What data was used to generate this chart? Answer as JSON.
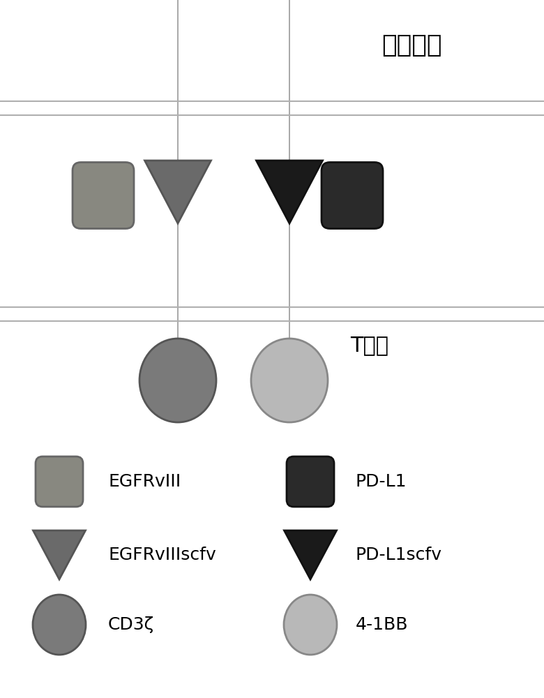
{
  "title_tumor": "肿瘤细胞",
  "title_tcell": "T细胞",
  "bg_color": "#ffffff",
  "membrane_color": "#b0b0b0",
  "line_color": "#999999",
  "egfrviii_rect_color": "#888880",
  "pdl1_rect_color": "#2a2a2a",
  "egfrviii_scfv_color": "#6a6a6a",
  "pdl1_scfv_color": "#1a1a1a",
  "cd3z_color": "#7a7a7a",
  "bb41_color": "#b8b8b8",
  "legend_egfrviii_label": "EGFRvIII",
  "legend_pdl1_label": "PD-L1",
  "legend_egfrviii_scfv_label": "EGFRvIIIscfv",
  "legend_pdl1_scfv_label": "PD-L1scfv",
  "legend_cd3z_label": "CD3ζ",
  "legend_41bb_label": "4-1BB"
}
